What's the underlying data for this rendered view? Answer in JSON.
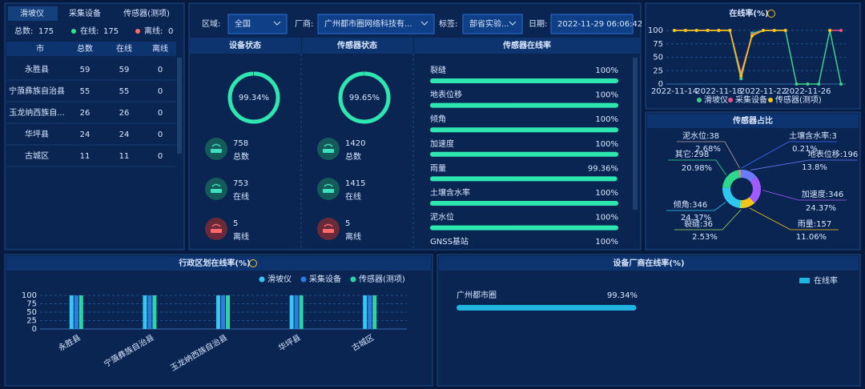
{
  "tabs": [
    "滑坡仪",
    "采集设备",
    "传感器(测项)"
  ],
  "summary": {
    "total_label": "总数:",
    "total": 175,
    "online_label": "在线:",
    "online": 175,
    "offline_label": "离线:",
    "offline": 0
  },
  "table": {
    "headers": [
      "市",
      "总数",
      "在线",
      "离线"
    ],
    "rows": [
      [
        "永胜县",
        59,
        59,
        0
      ],
      [
        "宁蒗彝族自治县",
        55,
        55,
        0
      ],
      [
        "玉龙纳西族自...",
        26,
        26,
        0
      ],
      [
        "华坪县",
        24,
        24,
        0
      ],
      [
        "古城区",
        11,
        11,
        0
      ]
    ]
  },
  "filters": [
    {
      "label": "区域:",
      "value": "全国"
    },
    {
      "label": "厂商:",
      "value": "广州都市圈网络科技有..."
    },
    {
      "label": "标签:",
      "value": "部省实验..."
    },
    {
      "label": "日期:",
      "value": "2022-11-29 06:06:42"
    }
  ],
  "status_panels": [
    {
      "title": "设备状态",
      "rate": {
        "value": 99.34,
        "label": "99.34%"
      },
      "items": [
        {
          "value": 758,
          "label": "总数"
        },
        {
          "value": 753,
          "label": "在线"
        },
        {
          "value": 5,
          "label": "离线"
        }
      ]
    },
    {
      "title": "传感器状态",
      "rate": {
        "value": 99.65,
        "label": "99.65%"
      },
      "items": [
        {
          "value": 1420,
          "label": "总数"
        },
        {
          "value": 1415,
          "label": "在线"
        },
        {
          "value": 5,
          "label": "离线"
        }
      ]
    }
  ],
  "chart_data": [
    {
      "type": "progress",
      "title": "传感器在线率",
      "categories": [
        "裂缝",
        "地表位移",
        "倾角",
        "加速度",
        "雨量",
        "土壤含水率",
        "泥水位",
        "GNSS基站"
      ],
      "values": [
        100,
        100,
        100,
        100,
        99.36,
        100,
        100,
        100
      ],
      "value_labels": [
        "100%",
        "100%",
        "100%",
        "100%",
        "99.36%",
        "100%",
        "100%",
        "100%"
      ],
      "xlim": [
        0,
        100
      ],
      "color": "#2ee6b0"
    },
    {
      "type": "line",
      "title": "在线率(%)",
      "categories": [
        "2022-11-14",
        null,
        null,
        null,
        "2022-11-18",
        null,
        null,
        null,
        "2022-11-22",
        null,
        null,
        null,
        "2022-11-26",
        null,
        null,
        null
      ],
      "series": [
        {
          "name": "滑坡仪",
          "color": "#3fd08a",
          "values": [
            100,
            100,
            100,
            100,
            100,
            100,
            10,
            95,
            100,
            100,
            100,
            0,
            0,
            0,
            100,
            0
          ]
        },
        {
          "name": "采集设备",
          "color": "#f0508a",
          "values": [
            100,
            100,
            100,
            100,
            100,
            100,
            20,
            92,
            100,
            100,
            100,
            null,
            null,
            null,
            100,
            100
          ]
        },
        {
          "name": "传感器(测项)",
          "color": "#f5c518",
          "values": [
            100,
            100,
            100,
            100,
            100,
            100,
            15,
            90,
            100,
            100,
            100,
            null,
            null,
            null,
            100,
            null
          ]
        }
      ],
      "ylim": [
        0,
        100
      ],
      "yticks": [
        0,
        25,
        50,
        75,
        100
      ],
      "grid": true
    },
    {
      "type": "pie",
      "title": "传感器占比",
      "labels": [
        "泥水位:38",
        "土壤含水率:3",
        "地表位移:196",
        "加速度:346",
        "雨量:157",
        "裂缝:36",
        "倾角:346",
        "其它:298"
      ],
      "values": [
        38,
        3,
        196,
        346,
        157,
        36,
        346,
        298
      ],
      "value_labels": [
        "2.68%",
        "0.21%",
        "13.8%",
        "24.37%",
        "11.06%",
        "2.53%",
        "24.37%",
        "20.98%"
      ],
      "colors": [
        "#b89a9a",
        "#3b6bff",
        "#6a7bff",
        "#a05cff",
        "#f5c518",
        "#a6e05a",
        "#2ec7f0",
        "#2ed88a"
      ]
    },
    {
      "type": "bar",
      "title": "行政区划在线率(%)",
      "categories": [
        "永胜县",
        "宁蒗彝族自治县",
        "玉龙纳西族自治县",
        "华坪县",
        "古城区"
      ],
      "series": [
        {
          "name": "滑坡仪",
          "color": "#36c6f4",
          "values": [
            100,
            100,
            100,
            100,
            100
          ]
        },
        {
          "name": "采集设备",
          "color": "#2a7de1",
          "values": [
            100,
            100,
            100,
            100,
            100
          ]
        },
        {
          "name": "传感器(测项)",
          "color": "#2dd4a8",
          "values": [
            100,
            100,
            100,
            100,
            100
          ]
        }
      ],
      "ylim": [
        0,
        100
      ],
      "yticks": [
        0,
        25,
        50,
        75,
        100
      ],
      "grid": true,
      "legend": "top-right"
    },
    {
      "type": "hbar",
      "title": "设备厂商在线率(%)",
      "categories": [
        "广州都市圈"
      ],
      "series": [
        {
          "name": "在线率",
          "color": "#1fb5e0",
          "values": [
            99.34
          ],
          "value_labels": [
            "99.34%"
          ]
        }
      ],
      "xlim": [
        0,
        100
      ],
      "legend": "top-right"
    }
  ]
}
